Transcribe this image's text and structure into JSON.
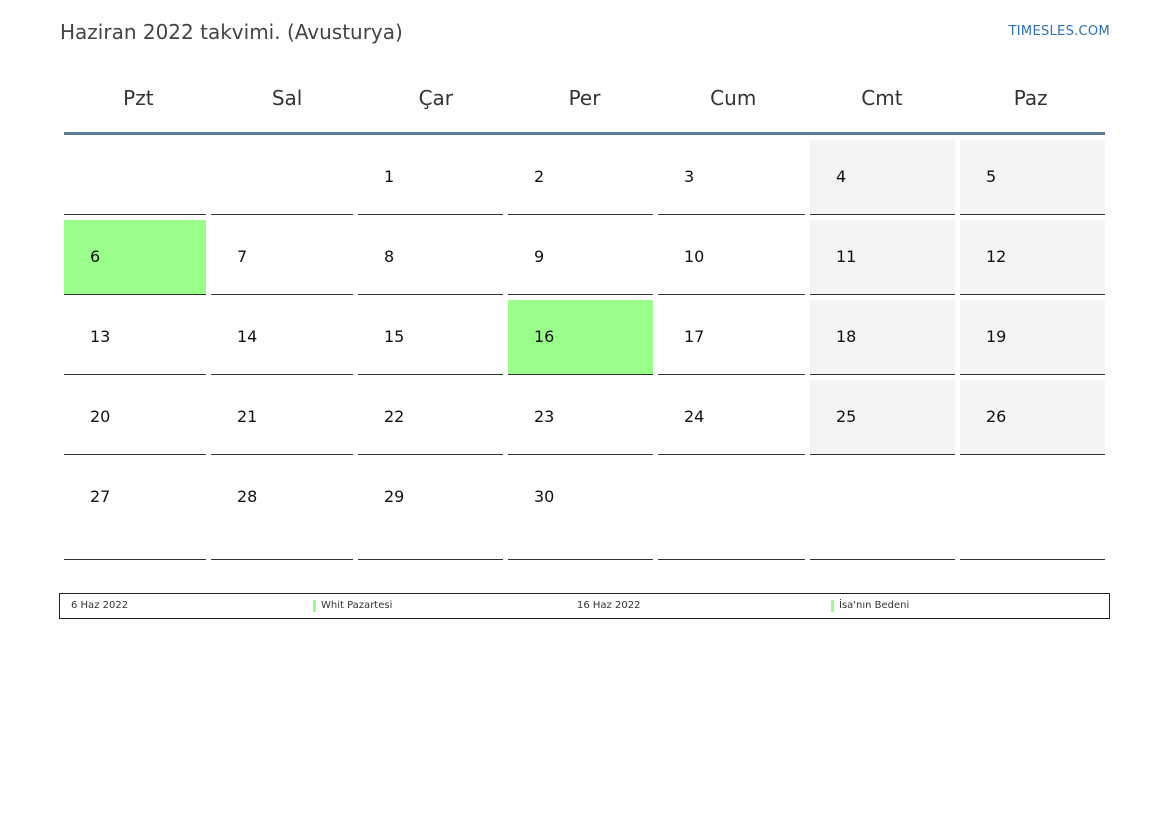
{
  "header": {
    "title": "Haziran 2022 takvimi. (Avusturya)",
    "brand": "TIMESLES.COM"
  },
  "weekdays": [
    "Pzt",
    "Sal",
    "Çar",
    "Per",
    "Cum",
    "Cmt",
    "Paz"
  ],
  "weeks": [
    [
      "",
      "",
      "1",
      "2",
      "3",
      "4",
      "5"
    ],
    [
      "6",
      "7",
      "8",
      "9",
      "10",
      "11",
      "12"
    ],
    [
      "13",
      "14",
      "15",
      "16",
      "17",
      "18",
      "19"
    ],
    [
      "20",
      "21",
      "22",
      "23",
      "24",
      "25",
      "26"
    ],
    [
      "27",
      "28",
      "29",
      "30",
      "",
      "",
      ""
    ]
  ],
  "holiday_days": [
    "6",
    "16"
  ],
  "colors": {
    "holiday": "#9afe8a",
    "weekend": "#f4f4f4",
    "header_rule": "#5f7a96",
    "brand": "#2e6fb5"
  },
  "legend": [
    {
      "date": "6 Haz 2022",
      "name": "Whit Pazartesi"
    },
    {
      "date": "16 Haz 2022",
      "name": "İsa'nın Bedeni"
    }
  ]
}
